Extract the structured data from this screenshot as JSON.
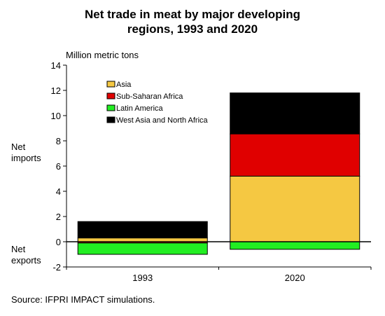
{
  "chart_data": {
    "type": "bar",
    "title_line1": "Net trade in meat by major developing",
    "title_line2": "regions, 1993 and 2020",
    "ylabel": "Million metric tons",
    "side_label_imports_1": "Net",
    "side_label_imports_2": "imports",
    "side_label_exports_1": "Net",
    "side_label_exports_2": "exports",
    "categories": [
      "1993",
      "2020"
    ],
    "ylim": [
      -2,
      14
    ],
    "yticks": [
      -2,
      0,
      2,
      4,
      6,
      8,
      10,
      12,
      14
    ],
    "stacked": true,
    "series": [
      {
        "name": "Asia",
        "color": "#f5c842",
        "values": [
          0.3,
          5.2
        ]
      },
      {
        "name": "Sub-Saharan Africa",
        "color": "#e00000",
        "values": [
          -0.1,
          3.35
        ]
      },
      {
        "name": "Latin America",
        "color": "#22ee22",
        "values": [
          -0.9,
          -0.6
        ]
      },
      {
        "name": "West Asia and North Africa",
        "color": "#000000",
        "values": [
          1.3,
          3.25
        ]
      }
    ],
    "legend_position": "top-left",
    "grid": false
  },
  "source": "Source:   IFPRI IMPACT simulations."
}
